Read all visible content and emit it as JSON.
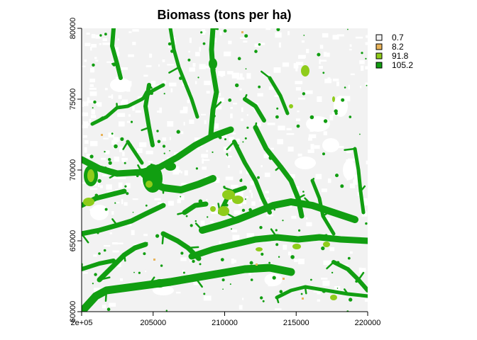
{
  "chart_data": {
    "type": "heatmap",
    "title": "Biomass (tons per ha)",
    "xlabel": "",
    "ylabel": "",
    "xlim": [
      200000,
      220000
    ],
    "ylim": [
      60000,
      80000
    ],
    "x_ticks": [
      {
        "value": 200000,
        "label": "2e+05"
      },
      {
        "value": 205000,
        "label": "205000"
      },
      {
        "value": 210000,
        "label": "210000"
      },
      {
        "value": 215000,
        "label": "215000"
      },
      {
        "value": 220000,
        "label": "220000"
      }
    ],
    "y_ticks": [
      {
        "value": 60000,
        "label": "60000"
      },
      {
        "value": 65000,
        "label": "65000"
      },
      {
        "value": 70000,
        "label": "70000"
      },
      {
        "value": 75000,
        "label": "75000"
      },
      {
        "value": 80000,
        "label": "80000"
      }
    ],
    "legend_position": "right",
    "classes": [
      {
        "label": "0.7",
        "value": 0.7,
        "color": "#f2f2f2"
      },
      {
        "label": "8.2",
        "value": 8.2,
        "color": "#e8b35a"
      },
      {
        "label": "91.8",
        "value": 91.8,
        "color": "#8fcc1a"
      },
      {
        "label": "105.2",
        "value": 105.2,
        "color": "#119e11"
      }
    ],
    "background_color": "#f2f2f2",
    "nodata_color": "#ffffff",
    "grid": false
  }
}
